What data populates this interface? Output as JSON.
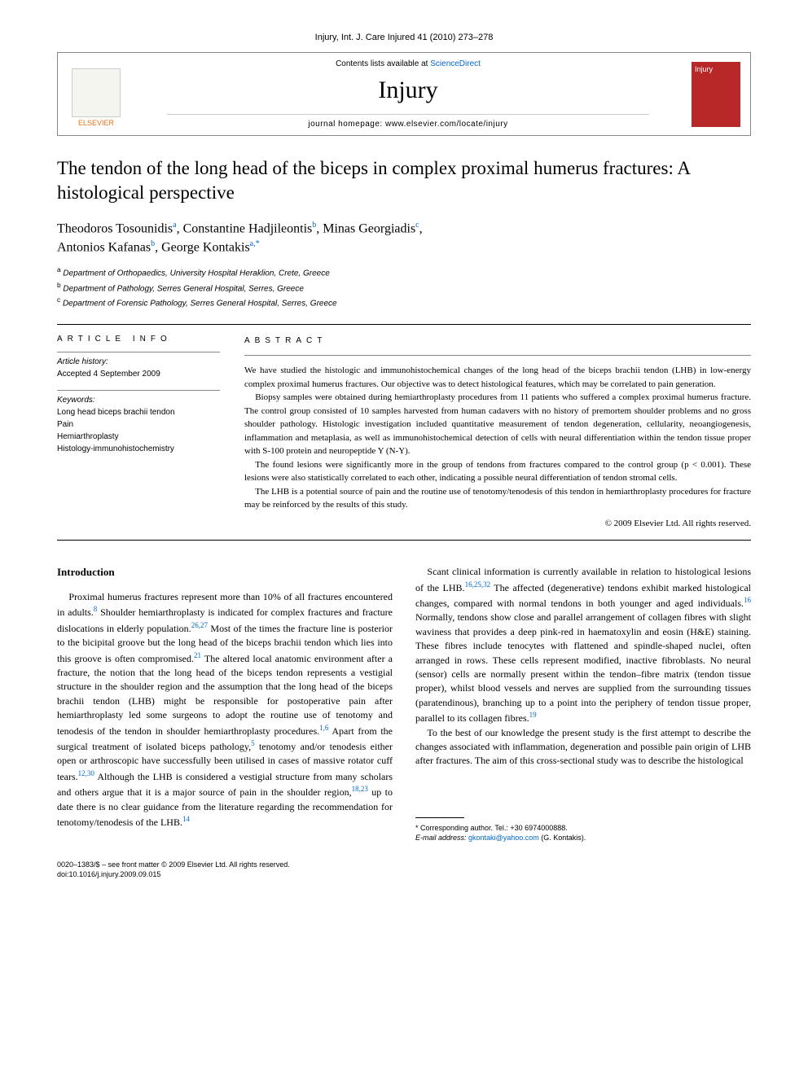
{
  "running_head": "Injury, Int. J. Care Injured 41 (2010) 273–278",
  "header": {
    "publisher_name": "ELSEVIER",
    "contents_prefix": "Contents lists available at ",
    "contents_link": "ScienceDirect",
    "journal_name": "Injury",
    "homepage_prefix": "journal homepage: ",
    "homepage_url": "www.elsevier.com/locate/injury",
    "cover_label": "Injury"
  },
  "title": "The tendon of the long head of the biceps in complex proximal humerus fractures: A histological perspective",
  "authors_html": "Theodoros Tosounidis <sup>a</sup>, Constantine Hadjileontis <sup>b</sup>, Minas Georgiadis <sup>c</sup>, Antonios Kafanas <sup>b</sup>, George Kontakis <sup>a,*</sup>",
  "affiliations": {
    "a": "Department of Orthopaedics, University Hospital Heraklion, Crete, Greece",
    "b": "Department of Pathology, Serres General Hospital, Serres, Greece",
    "c": "Department of Forensic Pathology, Serres General Hospital, Serres, Greece"
  },
  "article_info": {
    "heading": "ARTICLE INFO",
    "history_label": "Article history:",
    "history_text": "Accepted 4 September 2009",
    "keywords_label": "Keywords:",
    "keywords": [
      "Long head biceps brachii tendon",
      "Pain",
      "Hemiarthroplasty",
      "Histology-immunohistochemistry"
    ]
  },
  "abstract": {
    "heading": "ABSTRACT",
    "p1": "We have studied the histologic and immunohistochemical changes of the long head of the biceps brachii tendon (LHB) in low-energy complex proximal humerus fractures. Our objective was to detect histological features, which may be correlated to pain generation.",
    "p2": "Biopsy samples were obtained during hemiarthroplasty procedures from 11 patients who suffered a complex proximal humerus fracture. The control group consisted of 10 samples harvested from human cadavers with no history of premortem shoulder problems and no gross shoulder pathology. Histologic investigation included quantitative measurement of tendon degeneration, cellularity, neoangiogenesis, inflammation and metaplasia, as well as immunohistochemical detection of cells with neural differentiation within the tendon tissue proper with S-100 protein and neuropeptide Y (N-Y).",
    "p3": "The found lesions were significantly more in the group of tendons from fractures compared to the control group (p < 0.001). These lesions were also statistically correlated to each other, indicating a possible neural differentiation of tendon stromal cells.",
    "p4": "The LHB is a potential source of pain and the routine use of tenotomy/tenodesis of this tendon in hemiarthroplasty procedures for fracture may be reinforced by the results of this study.",
    "copyright": "© 2009 Elsevier Ltd. All rights reserved."
  },
  "body": {
    "intro_heading": "Introduction",
    "p1_a": "Proximal humerus fractures represent more than 10% of all fractures encountered in adults.",
    "p1_b": " Shoulder hemiarthroplasty is indicated for complex fractures and fracture dislocations in elderly population.",
    "p1_c": " Most of the times the fracture line is posterior to the bicipital groove but the long head of the biceps brachii tendon which lies into this groove is often compromised.",
    "p1_d": " The altered local anatomic environment after a fracture, the notion that the long head of the biceps tendon represents a vestigial structure in the shoulder region and the assumption that the long head of the biceps brachii tendon (LHB) might be responsible for postoperative pain after hemiarthroplasty led some surgeons to adopt the routine use of tenotomy and tenodesis of the tendon in shoulder hemiarthroplasty procedures.",
    "p1_e": " Apart from the surgical treatment of isolated biceps pathology,",
    "p1_f": " tenotomy and/or tenodesis either open or arthroscopic have successfully been utilised in cases of massive rotator cuff tears.",
    "p1_g": " Although the LHB is considered a",
    "p2_a": "vestigial structure from many scholars and others argue that it is a major source of pain in the shoulder region,",
    "p2_b": " up to date there is no clear guidance from the literature regarding the recommendation for tenotomy/tenodesis of the LHB.",
    "p3_a": "Scant clinical information is currently available in relation to histological lesions of the LHB.",
    "p3_b": " The affected (degenerative) tendons exhibit marked histological changes, compared with normal tendons in both younger and aged individuals.",
    "p3_c": " Normally, tendons show close and parallel arrangement of collagen fibres with slight waviness that provides a deep pink-red in haematoxylin and eosin (H&E) staining. These fibres include tenocytes with flattened and spindle-shaped nuclei, often arranged in rows. These cells represent modified, inactive fibroblasts. No neural (sensor) cells are normally present within the tendon–fibre matrix (tendon tissue proper), whilst blood vessels and nerves are supplied from the surrounding tissues (paratendinous), branching up to a point into the periphery of tendon tissue proper, parallel to its collagen fibres.",
    "p4": "To the best of our knowledge the present study is the first attempt to describe the changes associated with inflammation, degeneration and possible pain origin of LHB after fractures. The aim of this cross-sectional study was to describe the histological"
  },
  "footnotes": {
    "corr": "* Corresponding author. Tel.: +30 6974000888.",
    "email_label": "E-mail address: ",
    "email": "gkontaki@yahoo.com",
    "email_suffix": " (G. Kontakis)."
  },
  "bottom": {
    "line1": "0020–1383/$ – see front matter © 2009 Elsevier Ltd. All rights reserved.",
    "line2": "doi:10.1016/j.injury.2009.09.015"
  },
  "refs": {
    "r8": "8",
    "r2627": "26,27",
    "r21": "21",
    "r16": "1,6",
    "r5": "5",
    "r1230": "12,30",
    "r1823": "18,23",
    "r14": "14",
    "r162532": "16,25,32",
    "r16b": "16",
    "r19": "19"
  }
}
